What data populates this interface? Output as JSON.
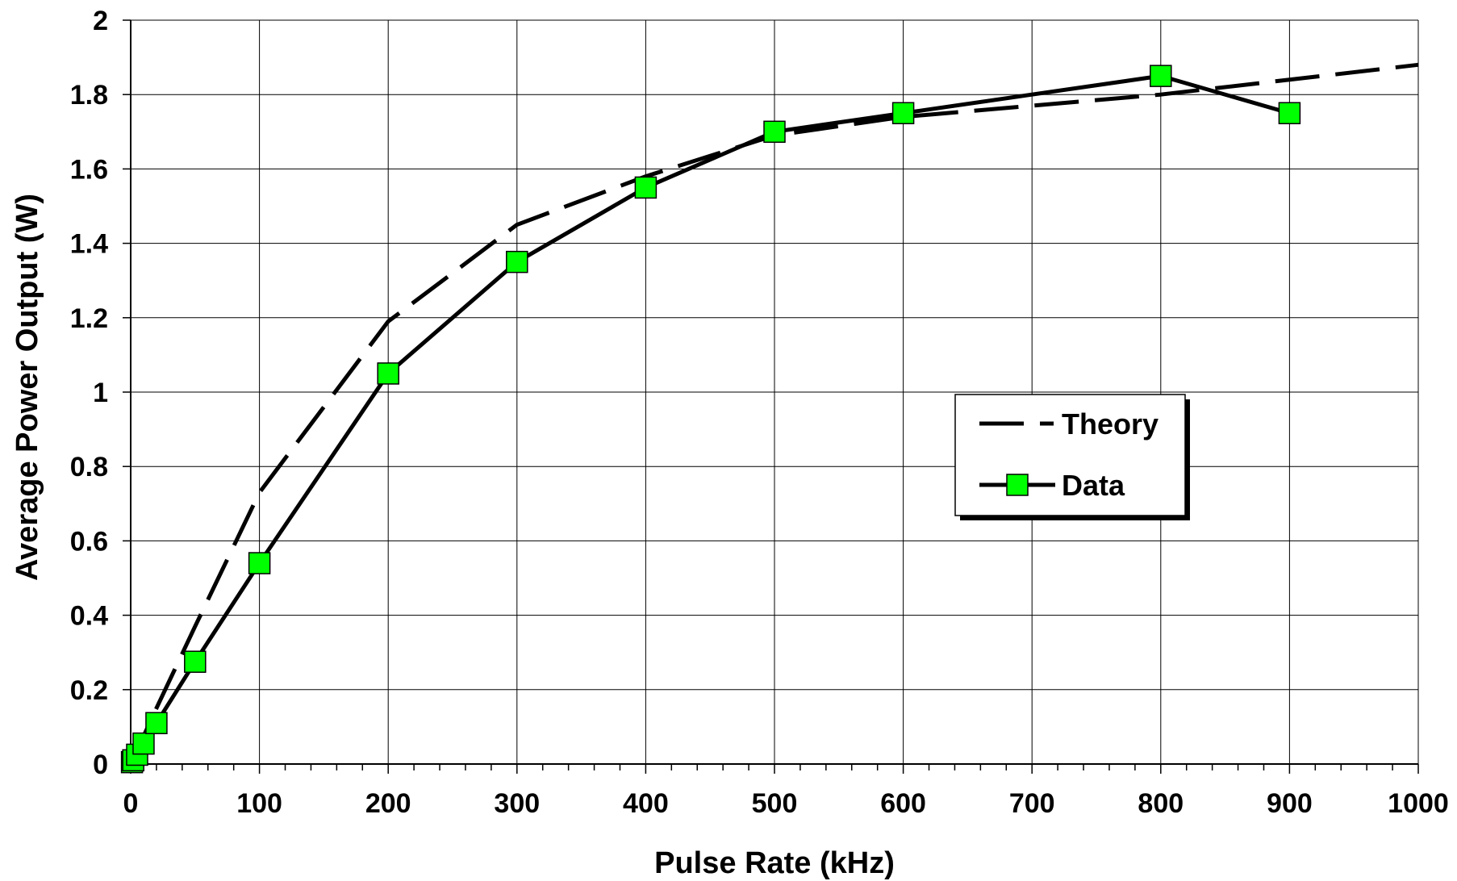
{
  "chart_data": {
    "type": "line",
    "title": "",
    "xlabel": "Pulse Rate (kHz)",
    "ylabel": "Average Power Output (W)",
    "xlim": [
      0,
      1000
    ],
    "ylim": [
      0,
      2
    ],
    "xticks": [
      0,
      100,
      200,
      300,
      400,
      500,
      600,
      700,
      800,
      900,
      1000
    ],
    "yticks": [
      0,
      0.2,
      0.4,
      0.6,
      0.8,
      1,
      1.2,
      1.4,
      1.6,
      1.8,
      2
    ],
    "xtick_labels": [
      "0",
      "100",
      "200",
      "300",
      "400",
      "500",
      "600",
      "700",
      "800",
      "900",
      "1000"
    ],
    "ytick_labels": [
      "0",
      "0.2",
      "0.4",
      "0.6",
      "0.8",
      "1",
      "1.2",
      "1.4",
      "1.6",
      "1.8",
      "2"
    ],
    "grid": true,
    "legend_position": "center-right",
    "series": [
      {
        "name": "Theory",
        "style": "dashed",
        "color": "#000000",
        "x": [
          0,
          20,
          50,
          100,
          200,
          300,
          400,
          500,
          600,
          700,
          800,
          900,
          1000
        ],
        "y": [
          0,
          0.15,
          0.37,
          0.73,
          1.19,
          1.45,
          1.58,
          1.69,
          1.74,
          1.77,
          1.8,
          1.84,
          1.88
        ]
      },
      {
        "name": "Data",
        "style": "solid-with-markers",
        "color": "#000000",
        "marker_color": "#00ff00",
        "x": [
          1,
          2,
          5,
          10,
          20,
          50,
          100,
          200,
          300,
          400,
          500,
          600,
          800,
          900
        ],
        "y": [
          0.005,
          0.01,
          0.025,
          0.055,
          0.11,
          0.275,
          0.54,
          1.05,
          1.35,
          1.55,
          1.7,
          1.75,
          1.85,
          1.75
        ]
      }
    ]
  }
}
